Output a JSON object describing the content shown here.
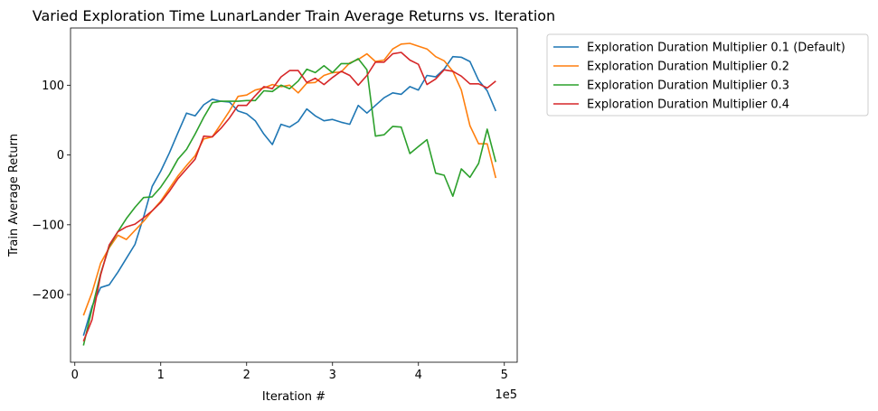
{
  "chart_data": {
    "type": "line",
    "title": "Varied Exploration Time LunarLander Train Average Returns vs. Iteration",
    "xlabel": "Iteration #",
    "ylabel": "Train Average Return",
    "x_offset_label": "1e5",
    "xlim": [
      -0.05,
      5.15
    ],
    "ylim": [
      -297,
      182
    ],
    "x_ticks": [
      0,
      1,
      2,
      3,
      4,
      5
    ],
    "x_tick_labels": [
      "0",
      "1",
      "2",
      "3",
      "4",
      "5"
    ],
    "y_ticks": [
      -200,
      -100,
      0,
      100
    ],
    "y_tick_labels": [
      "−200",
      "−100",
      "0",
      "100"
    ],
    "grid": false,
    "legend_position": "outside-right",
    "x": [
      0.1,
      0.2,
      0.3,
      0.4,
      0.5,
      0.6,
      0.7,
      0.8,
      0.9,
      1.0,
      1.1,
      1.2,
      1.3,
      1.4,
      1.5,
      1.6,
      1.7,
      1.8,
      1.9,
      2.0,
      2.1,
      2.2,
      2.3,
      2.4,
      2.5,
      2.6,
      2.7,
      2.8,
      2.9,
      3.0,
      3.1,
      3.2,
      3.3,
      3.4,
      3.5,
      3.6,
      3.7,
      3.8,
      3.9,
      4.0,
      4.1,
      4.2,
      4.3,
      4.4,
      4.5,
      4.6,
      4.7,
      4.8,
      4.9
    ],
    "series": [
      {
        "name": "Exploration Duration Multiplier 0.1 (Default)",
        "color": "#1f77b4",
        "values": [
          -259,
          -217,
          -190,
          -186,
          -168,
          -148,
          -128,
          -89,
          -45,
          -23,
          3,
          32,
          60,
          56,
          72,
          80,
          77,
          76,
          63,
          59,
          49,
          30,
          15,
          44,
          40,
          48,
          66,
          56,
          49,
          51,
          47,
          44,
          71,
          60,
          71,
          82,
          89,
          87,
          98,
          93,
          114,
          112,
          123,
          141,
          140,
          134,
          107,
          92,
          63
        ]
      },
      {
        "name": "Exploration Duration Multiplier 0.2",
        "color": "#ff7f0e",
        "values": [
          -230,
          -197,
          -155,
          -133,
          -115,
          -121,
          -108,
          -95,
          -80,
          -66,
          -48,
          -30,
          -15,
          -1,
          23,
          26,
          44,
          63,
          84,
          86,
          93,
          96,
          101,
          98,
          100,
          89,
          103,
          104,
          114,
          118,
          119,
          132,
          137,
          145,
          134,
          136,
          152,
          159,
          160,
          156,
          152,
          141,
          135,
          120,
          93,
          42,
          16,
          16,
          -33
        ]
      },
      {
        "name": "Exploration Duration Multiplier 0.3",
        "color": "#2ca02c",
        "values": [
          -273,
          -220,
          -170,
          -131,
          -110,
          -91,
          -75,
          -61,
          -60,
          -46,
          -28,
          -6,
          8,
          30,
          54,
          75,
          77,
          77,
          77,
          78,
          78,
          92,
          91,
          100,
          95,
          106,
          123,
          118,
          128,
          118,
          131,
          131,
          138,
          122,
          27,
          29,
          41,
          40,
          2,
          12,
          22,
          -26,
          -29,
          -59,
          -20,
          -32,
          -12,
          37,
          -10
        ]
      },
      {
        "name": "Exploration Duration Multiplier 0.4",
        "color": "#d62728",
        "values": [
          -267,
          -236,
          -172,
          -129,
          -110,
          -103,
          -99,
          -90,
          -80,
          -68,
          -52,
          -34,
          -20,
          -6,
          27,
          26,
          38,
          53,
          71,
          71,
          85,
          98,
          95,
          112,
          121,
          121,
          104,
          110,
          101,
          111,
          120,
          114,
          100,
          114,
          133,
          133,
          145,
          147,
          136,
          130,
          101,
          109,
          122,
          120,
          113,
          102,
          102,
          96,
          106
        ]
      }
    ]
  }
}
